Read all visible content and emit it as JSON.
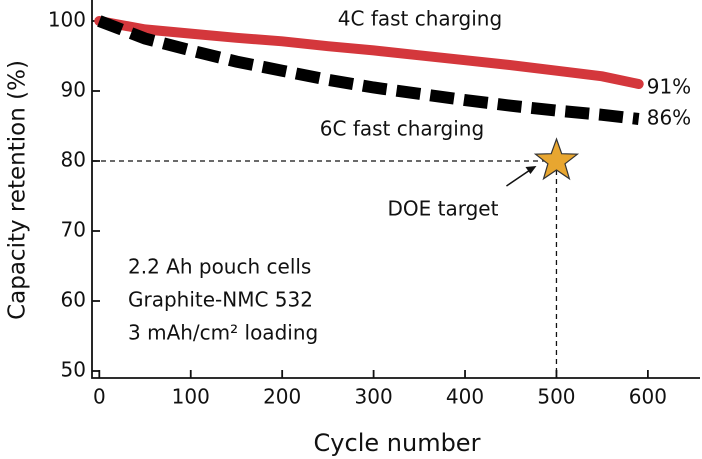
{
  "chart_data": {
    "type": "line",
    "x_label": "Cycle number",
    "y_label": "Capacity retention (%)",
    "x": [
      0,
      50,
      100,
      150,
      200,
      250,
      300,
      350,
      400,
      450,
      500,
      550,
      590
    ],
    "series": [
      {
        "name": "4C fast charging",
        "color": "#d4373c",
        "line_style": "solid",
        "end_label": "91%",
        "values": [
          100,
          98.8,
          98.2,
          97.6,
          97.1,
          96.4,
          95.8,
          95.1,
          94.4,
          93.7,
          92.9,
          92.1,
          91.0
        ]
      },
      {
        "name": "6C fast charging",
        "color": "#000000",
        "line_style": "dashed",
        "end_label": "86%",
        "values": [
          100,
          97.5,
          95.8,
          94.2,
          92.9,
          91.6,
          90.5,
          89.6,
          88.7,
          87.9,
          87.2,
          86.6,
          86.0
        ]
      }
    ],
    "target": {
      "label": "DOE target",
      "x": 500,
      "y": 80,
      "color": "#e8a630"
    },
    "notes": [
      "2.2 Ah pouch cells",
      "Graphite-NMC 532",
      "3 mAh/cm² loading"
    ],
    "xlim": [
      -8,
      657
    ],
    "ylim": [
      49,
      103
    ],
    "xticks": [
      0,
      100,
      200,
      300,
      400,
      500,
      600
    ],
    "yticks": [
      50,
      60,
      70,
      80,
      90,
      100
    ]
  }
}
